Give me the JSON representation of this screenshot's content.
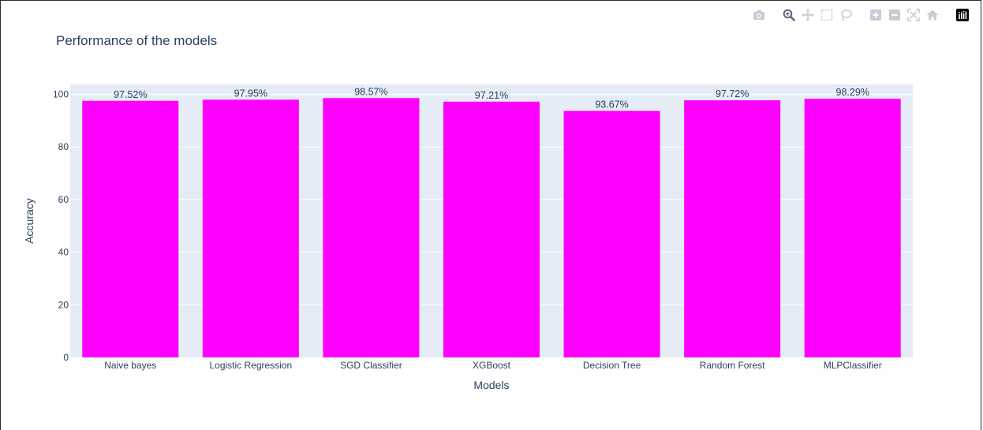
{
  "modebar": {
    "buttons": [
      {
        "name": "download-plot-button",
        "icon": "camera-icon"
      },
      {
        "name": "zoom-button",
        "icon": "zoom-icon"
      },
      {
        "name": "pan-button",
        "icon": "pan-icon"
      },
      {
        "name": "box-select-button",
        "icon": "box-select-icon"
      },
      {
        "name": "lasso-select-button",
        "icon": "lasso-icon"
      },
      {
        "name": "zoom-in-button",
        "icon": "zoom-in-icon"
      },
      {
        "name": "zoom-out-button",
        "icon": "zoom-out-icon"
      },
      {
        "name": "autoscale-button",
        "icon": "autoscale-icon"
      },
      {
        "name": "reset-axes-button",
        "icon": "home-icon"
      },
      {
        "name": "plotly-logo-button",
        "icon": "plotly-logo-icon"
      }
    ],
    "colors": {
      "icon": "#c7ccd6",
      "active": "#6f7a8a",
      "logo_bg": "#000000"
    }
  },
  "chart_data": {
    "type": "bar",
    "title": "Performance of the models",
    "xlabel": "Models",
    "ylabel": "Accuracy",
    "categories": [
      "Naive bayes",
      "Logistic Regression",
      "SGD Classifier",
      "XGBoost",
      "Decision Tree",
      "Random Forest",
      "MLPClassifier"
    ],
    "values": [
      97.52,
      97.95,
      98.57,
      97.21,
      93.67,
      97.72,
      98.29
    ],
    "data_labels": [
      "97.52%",
      "97.95%",
      "98.57%",
      "97.21%",
      "93.67%",
      "97.72%",
      "98.29%"
    ],
    "ylim": [
      0,
      103.75
    ],
    "yticks": [
      0,
      20,
      40,
      60,
      80,
      100
    ],
    "grid": true,
    "legend": false,
    "colors": {
      "bar": "#ff00ff",
      "plot_bg": "#e5ecf6",
      "grid": "#ffffff",
      "text": "#2a3f5f"
    }
  }
}
